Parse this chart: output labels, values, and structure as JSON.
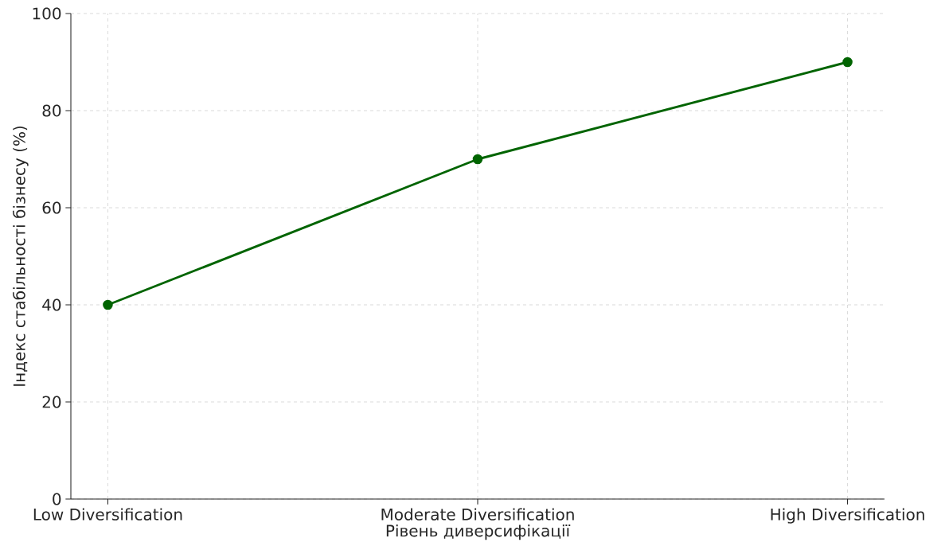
{
  "chart_data": {
    "type": "line",
    "xlabel": "Рівень диверсифікації",
    "ylabel": "Індекс стабільності бізнесу (%)",
    "categories": [
      "Low Diversification",
      "Moderate Diversification",
      "High Diversification"
    ],
    "series": [
      {
        "color": "#006400",
        "values": [
          40,
          70,
          90
        ]
      }
    ],
    "ylim": [
      0,
      100
    ],
    "yticks": [
      0,
      20,
      40,
      60,
      80,
      100
    ],
    "grid": true,
    "marker": "circle",
    "line_style": "solid"
  }
}
